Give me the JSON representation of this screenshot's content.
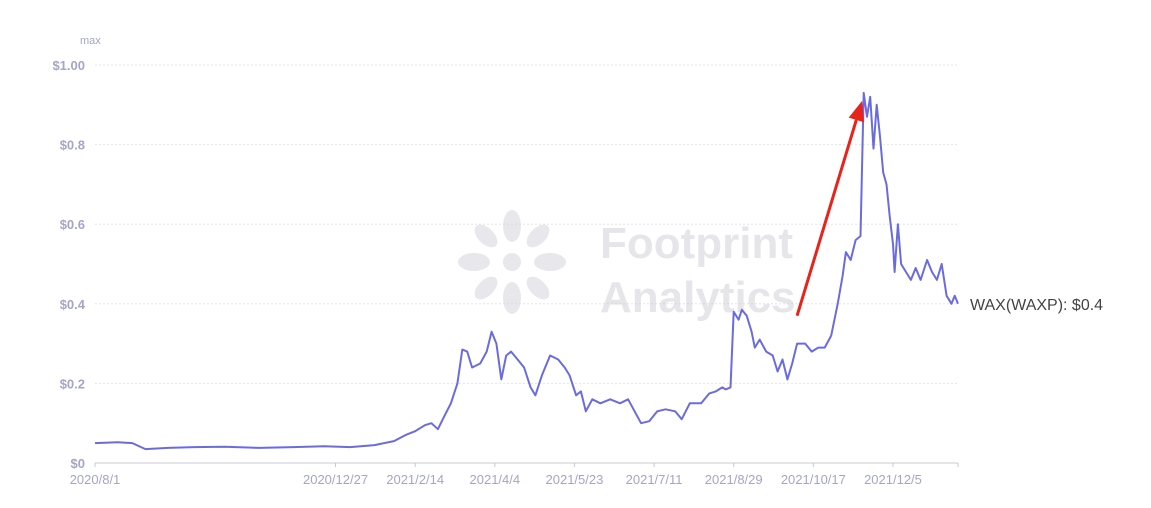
{
  "chart_data": {
    "type": "line",
    "title": "",
    "xlabel": "",
    "ylabel": "",
    "y_unit_label": "max",
    "ylim": [
      0,
      1.0
    ],
    "y_ticks": [
      {
        "value": 0,
        "label": "$0"
      },
      {
        "value": 0.2,
        "label": "$0.2"
      },
      {
        "value": 0.4,
        "label": "$0.4"
      },
      {
        "value": 0.6,
        "label": "$0.6"
      },
      {
        "value": 0.8,
        "label": "$0.8"
      },
      {
        "value": 1.0,
        "label": "$1.00"
      }
    ],
    "x_range": [
      "2020-08-01",
      "2022-01-14"
    ],
    "x_ticks": [
      {
        "date": "2020-08-01",
        "label": "2020/8/1"
      },
      {
        "date": "2020-12-27",
        "label": "2020/12/27"
      },
      {
        "date": "2021-02-14",
        "label": "2021/2/14"
      },
      {
        "date": "2021-04-04",
        "label": "2021/4/4"
      },
      {
        "date": "2021-05-23",
        "label": "2021/5/23"
      },
      {
        "date": "2021-07-11",
        "label": "2021/7/11"
      },
      {
        "date": "2021-08-29",
        "label": "2021/8/29"
      },
      {
        "date": "2021-10-17",
        "label": "2021/10/17"
      },
      {
        "date": "2021-12-05",
        "label": "2021/12/5"
      }
    ],
    "grid": true,
    "series": [
      {
        "name": "WAX(WAXP)",
        "color": "#6b6be0",
        "end_label": "WAX(WAXP): $0.4",
        "points": [
          [
            "2020-08-01",
            0.05
          ],
          [
            "2020-08-15",
            0.052
          ],
          [
            "2020-08-24",
            0.05
          ],
          [
            "2020-09-01",
            0.035
          ],
          [
            "2020-09-15",
            0.038
          ],
          [
            "2020-10-01",
            0.04
          ],
          [
            "2020-10-20",
            0.041
          ],
          [
            "2020-11-10",
            0.038
          ],
          [
            "2020-12-01",
            0.04
          ],
          [
            "2020-12-20",
            0.042
          ],
          [
            "2021-01-05",
            0.04
          ],
          [
            "2021-01-20",
            0.045
          ],
          [
            "2021-02-01",
            0.055
          ],
          [
            "2021-02-08",
            0.07
          ],
          [
            "2021-02-14",
            0.08
          ],
          [
            "2021-02-20",
            0.095
          ],
          [
            "2021-02-24",
            0.1
          ],
          [
            "2021-02-28",
            0.085
          ],
          [
            "2021-03-03",
            0.11
          ],
          [
            "2021-03-08",
            0.15
          ],
          [
            "2021-03-12",
            0.2
          ],
          [
            "2021-03-15",
            0.285
          ],
          [
            "2021-03-18",
            0.28
          ],
          [
            "2021-03-21",
            0.24
          ],
          [
            "2021-03-26",
            0.25
          ],
          [
            "2021-03-30",
            0.28
          ],
          [
            "2021-04-02",
            0.33
          ],
          [
            "2021-04-05",
            0.3
          ],
          [
            "2021-04-08",
            0.21
          ],
          [
            "2021-04-11",
            0.27
          ],
          [
            "2021-04-14",
            0.28
          ],
          [
            "2021-04-18",
            0.26
          ],
          [
            "2021-04-22",
            0.24
          ],
          [
            "2021-04-26",
            0.19
          ],
          [
            "2021-04-29",
            0.17
          ],
          [
            "2021-05-03",
            0.22
          ],
          [
            "2021-05-08",
            0.27
          ],
          [
            "2021-05-13",
            0.26
          ],
          [
            "2021-05-17",
            0.24
          ],
          [
            "2021-05-20",
            0.22
          ],
          [
            "2021-05-24",
            0.17
          ],
          [
            "2021-05-27",
            0.18
          ],
          [
            "2021-05-30",
            0.13
          ],
          [
            "2021-06-03",
            0.16
          ],
          [
            "2021-06-08",
            0.15
          ],
          [
            "2021-06-14",
            0.16
          ],
          [
            "2021-06-20",
            0.15
          ],
          [
            "2021-06-25",
            0.16
          ],
          [
            "2021-06-29",
            0.13
          ],
          [
            "2021-07-03",
            0.1
          ],
          [
            "2021-07-08",
            0.105
          ],
          [
            "2021-07-13",
            0.13
          ],
          [
            "2021-07-18",
            0.135
          ],
          [
            "2021-07-24",
            0.13
          ],
          [
            "2021-07-28",
            0.11
          ],
          [
            "2021-08-02",
            0.15
          ],
          [
            "2021-08-09",
            0.15
          ],
          [
            "2021-08-14",
            0.175
          ],
          [
            "2021-08-18",
            0.18
          ],
          [
            "2021-08-22",
            0.19
          ],
          [
            "2021-08-24",
            0.185
          ],
          [
            "2021-08-27",
            0.19
          ],
          [
            "2021-08-29",
            0.38
          ],
          [
            "2021-09-01",
            0.36
          ],
          [
            "2021-09-03",
            0.385
          ],
          [
            "2021-09-06",
            0.37
          ],
          [
            "2021-09-09",
            0.33
          ],
          [
            "2021-09-11",
            0.29
          ],
          [
            "2021-09-14",
            0.31
          ],
          [
            "2021-09-18",
            0.28
          ],
          [
            "2021-09-22",
            0.27
          ],
          [
            "2021-09-25",
            0.23
          ],
          [
            "2021-09-28",
            0.26
          ],
          [
            "2021-10-01",
            0.21
          ],
          [
            "2021-10-04",
            0.25
          ],
          [
            "2021-10-07",
            0.3
          ],
          [
            "2021-10-12",
            0.3
          ],
          [
            "2021-10-16",
            0.28
          ],
          [
            "2021-10-20",
            0.29
          ],
          [
            "2021-10-24",
            0.29
          ],
          [
            "2021-10-28",
            0.32
          ],
          [
            "2021-11-01",
            0.4
          ],
          [
            "2021-11-04",
            0.47
          ],
          [
            "2021-11-06",
            0.53
          ],
          [
            "2021-11-09",
            0.51
          ],
          [
            "2021-11-12",
            0.56
          ],
          [
            "2021-11-15",
            0.57
          ],
          [
            "2021-11-17",
            0.93
          ],
          [
            "2021-11-19",
            0.87
          ],
          [
            "2021-11-21",
            0.92
          ],
          [
            "2021-11-23",
            0.79
          ],
          [
            "2021-11-25",
            0.9
          ],
          [
            "2021-11-27",
            0.82
          ],
          [
            "2021-11-29",
            0.73
          ],
          [
            "2021-12-01",
            0.7
          ],
          [
            "2021-12-03",
            0.62
          ],
          [
            "2021-12-05",
            0.55
          ],
          [
            "2021-12-06",
            0.48
          ],
          [
            "2021-12-08",
            0.6
          ],
          [
            "2021-12-10",
            0.5
          ],
          [
            "2021-12-13",
            0.48
          ],
          [
            "2021-12-16",
            0.46
          ],
          [
            "2021-12-19",
            0.49
          ],
          [
            "2021-12-22",
            0.46
          ],
          [
            "2021-12-26",
            0.51
          ],
          [
            "2021-12-29",
            0.48
          ],
          [
            "2022-01-01",
            0.46
          ],
          [
            "2022-01-04",
            0.5
          ],
          [
            "2022-01-07",
            0.42
          ],
          [
            "2022-01-10",
            0.4
          ],
          [
            "2022-01-12",
            0.42
          ],
          [
            "2022-01-14",
            0.4
          ]
        ]
      }
    ],
    "annotation": {
      "type": "arrow",
      "color": "#e8231a",
      "from": [
        "2021-10-07",
        0.37
      ],
      "to": [
        "2021-11-16",
        0.91
      ]
    }
  },
  "watermark": {
    "line1": "Footprint",
    "line2": "Analytics"
  }
}
